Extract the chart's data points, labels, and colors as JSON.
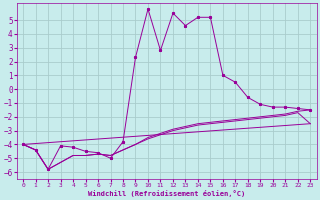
{
  "xlabel": "Windchill (Refroidissement éolien,°C)",
  "bg_color": "#c8ecec",
  "grid_color": "#aacccc",
  "line_color": "#990099",
  "xlim": [
    -0.5,
    23.5
  ],
  "ylim": [
    -6.5,
    6.2
  ],
  "yticks": [
    -6,
    -5,
    -4,
    -3,
    -2,
    -1,
    0,
    1,
    2,
    3,
    4,
    5
  ],
  "xticks": [
    0,
    1,
    2,
    3,
    4,
    5,
    6,
    7,
    8,
    9,
    10,
    11,
    12,
    13,
    14,
    15,
    16,
    17,
    18,
    19,
    20,
    21,
    22,
    23
  ],
  "series1_x": [
    0,
    1,
    2,
    3,
    4,
    5,
    6,
    7,
    8,
    9,
    10,
    11,
    12,
    13,
    14,
    15,
    16,
    17,
    18,
    19,
    20,
    21,
    22,
    23
  ],
  "series1_y": [
    -4.0,
    -4.4,
    -5.8,
    -4.1,
    -4.2,
    -4.5,
    -4.6,
    -5.0,
    -3.8,
    2.3,
    5.8,
    2.8,
    5.5,
    4.6,
    5.2,
    5.2,
    1.0,
    0.5,
    -0.6,
    -1.1,
    -1.3,
    -1.3,
    -1.4,
    -1.5
  ],
  "line2_x": [
    0,
    1,
    2,
    3,
    4,
    5,
    6,
    7,
    8,
    9,
    10,
    11,
    12,
    13,
    14,
    15,
    16,
    17,
    18,
    19,
    20,
    21,
    22,
    23
  ],
  "line2_y": [
    -4.0,
    -4.4,
    -5.8,
    -5.3,
    -4.8,
    -4.8,
    -4.7,
    -4.8,
    -4.4,
    -4.0,
    -3.6,
    -3.3,
    -3.0,
    -2.8,
    -2.6,
    -2.5,
    -2.4,
    -2.3,
    -2.2,
    -2.1,
    -2.0,
    -1.9,
    -1.7,
    -2.5
  ],
  "line3_x": [
    0,
    1,
    2,
    3,
    4,
    5,
    6,
    7,
    8,
    9,
    10,
    11,
    12,
    13,
    14,
    15,
    16,
    17,
    18,
    19,
    20,
    21,
    22,
    23
  ],
  "line3_y": [
    -4.0,
    -4.4,
    -5.8,
    -5.3,
    -4.8,
    -4.8,
    -4.7,
    -4.8,
    -4.4,
    -4.0,
    -3.5,
    -3.2,
    -2.9,
    -2.7,
    -2.5,
    -2.4,
    -2.3,
    -2.2,
    -2.1,
    -2.0,
    -1.9,
    -1.8,
    -1.6,
    -1.5
  ],
  "line4_x": [
    0,
    23
  ],
  "line4_y": [
    -4.0,
    -2.5
  ]
}
